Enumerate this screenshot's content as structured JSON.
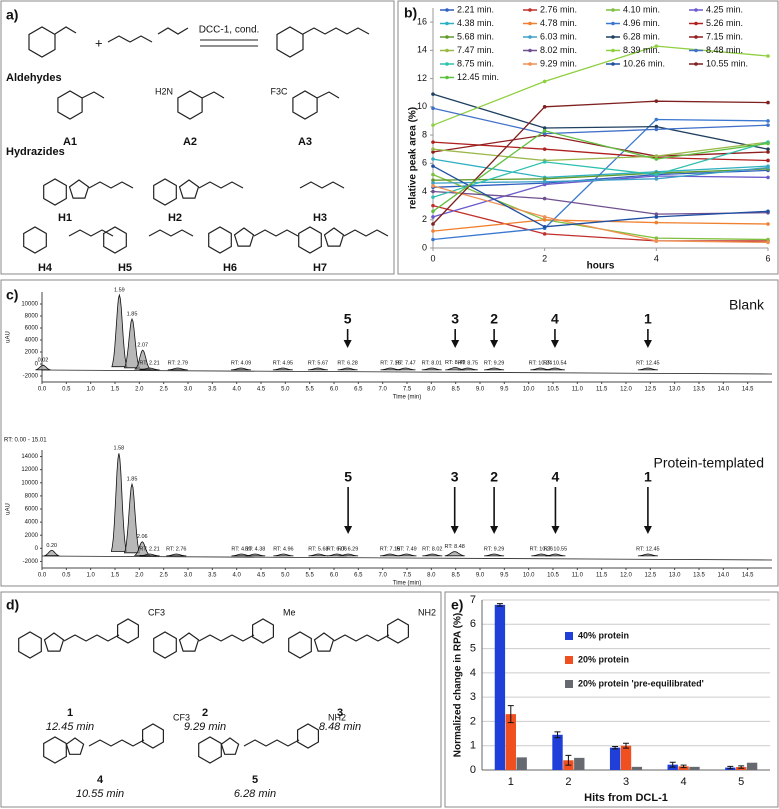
{
  "panel_a": {
    "label": "a)",
    "condition": "DCC-1, cond.",
    "aldehydes_heading": "Aldehydes",
    "aldehydes": [
      {
        "name": "A1"
      },
      {
        "name": "A2",
        "substituent": "H2N"
      },
      {
        "name": "A3",
        "substituent": "F3C"
      }
    ],
    "hydrazides_heading": "Hydrazides",
    "hydrazides": [
      "H1",
      "H2",
      "H3",
      "H4",
      "H5",
      "H6",
      "H7"
    ]
  },
  "panel_d": {
    "label": "d)",
    "compounds": [
      {
        "number": "1",
        "time": "12.45 min",
        "substituent": "CF3"
      },
      {
        "number": "2",
        "time": "9.29 min",
        "substituent": "Me"
      },
      {
        "number": "3",
        "time": "8.48 min",
        "substituent": "NH2"
      },
      {
        "number": "4",
        "time": "10.55 min",
        "substituent": "CF3"
      },
      {
        "number": "5",
        "time": "6.28 min",
        "substituent": "NH2"
      }
    ]
  },
  "chart_data": [
    {
      "type": "line",
      "label": "b)",
      "xlabel": "hours",
      "ylabel": "relative peak area (%)",
      "x": [
        0,
        2,
        4,
        6
      ],
      "xlim": [
        0,
        6
      ],
      "xticks": [
        0,
        2,
        4,
        6
      ],
      "ylim": [
        0,
        17
      ],
      "yticks": [
        0,
        2,
        4,
        6,
        8,
        10,
        12,
        14,
        16
      ],
      "legend": "top",
      "series": [
        {
          "name": "2.21 min.",
          "color": "#2f5fbf",
          "values": [
            4.3,
            4.6,
            5.2,
            5.5
          ]
        },
        {
          "name": "2.76 min.",
          "color": "#c0302c",
          "values": [
            3.0,
            1.0,
            0.5,
            0.5
          ]
        },
        {
          "name": "4.10 min.",
          "color": "#7fbf3f",
          "values": [
            5.2,
            2.0,
            0.7,
            0.6
          ]
        },
        {
          "name": "4.25 min.",
          "color": "#6a5acd",
          "values": [
            2.2,
            4.5,
            5.1,
            5.0
          ]
        },
        {
          "name": "4.38 min.",
          "color": "#2fb0c0",
          "values": [
            6.3,
            5.0,
            5.4,
            5.8
          ]
        },
        {
          "name": "4.78 min.",
          "color": "#f08030",
          "values": [
            1.2,
            2.0,
            1.8,
            1.7
          ]
        },
        {
          "name": "4.96 min.",
          "color": "#3a78d0",
          "values": [
            0.6,
            1.4,
            9.1,
            9.0
          ]
        },
        {
          "name": "5.26 min.",
          "color": "#b02020",
          "values": [
            7.5,
            7.0,
            6.4,
            6.2
          ]
        },
        {
          "name": "5.68 min.",
          "color": "#5f9a2a",
          "values": [
            4.8,
            4.9,
            5.3,
            5.6
          ]
        },
        {
          "name": "6.03 min.",
          "color": "#3fa0c8",
          "values": [
            4.6,
            4.7,
            4.9,
            5.7
          ]
        },
        {
          "name": "6.28 min.",
          "color": "#1f3f5f",
          "values": [
            10.9,
            8.5,
            8.6,
            7.0
          ]
        },
        {
          "name": "7.15 min.",
          "color": "#8f1f1f",
          "values": [
            6.8,
            8.0,
            6.5,
            6.8
          ]
        },
        {
          "name": "7.47 min.",
          "color": "#9ab84a",
          "values": [
            7.0,
            6.2,
            6.5,
            7.5
          ]
        },
        {
          "name": "8.02 min.",
          "color": "#6f4f8f",
          "values": [
            4.0,
            3.5,
            2.4,
            2.5
          ]
        },
        {
          "name": "8.39 min.",
          "color": "#8fd040",
          "values": [
            8.7,
            11.8,
            14.3,
            13.6
          ]
        },
        {
          "name": "8.48 min.",
          "color": "#4070c8",
          "values": [
            9.9,
            8.1,
            8.4,
            8.7
          ]
        },
        {
          "name": "8.75 min.",
          "color": "#2fc0b0",
          "values": [
            3.6,
            6.1,
            5.2,
            7.5
          ]
        },
        {
          "name": "9.29 min.",
          "color": "#f09050",
          "values": [
            4.4,
            2.2,
            0.5,
            0.4
          ]
        },
        {
          "name": "10.26 min.",
          "color": "#1f4fa0",
          "values": [
            5.8,
            1.5,
            2.2,
            2.6
          ]
        },
        {
          "name": "10.55 min.",
          "color": "#7f1f1f",
          "values": [
            1.7,
            10.0,
            10.4,
            10.3
          ]
        },
        {
          "name": "12.45 min.",
          "color": "#5fc040",
          "values": [
            2.6,
            8.3,
            6.3,
            7.4
          ]
        }
      ]
    },
    {
      "type": "chromatogram",
      "label": "c)",
      "xlabel": "Time (min)",
      "ylabel": "uAU",
      "xlim": [
        0,
        15
      ],
      "xticks": [
        {
          "value": 0,
          "label": "0.0"
        },
        0.5,
        {
          "value": 1,
          "label": "1.0"
        },
        1.5,
        {
          "value": 2,
          "label": "2.0"
        },
        2.5,
        {
          "value": 3,
          "label": "3.0"
        },
        3.5,
        {
          "value": 4,
          "label": "4.0"
        },
        4.5,
        {
          "value": 5,
          "label": "5.0"
        },
        5.5,
        {
          "value": 6,
          "label": "6.0"
        },
        6.5,
        {
          "value": 7,
          "label": "7.0"
        },
        7.5,
        {
          "value": 8,
          "label": "8.0"
        },
        8.5,
        {
          "value": 9,
          "label": "9.0"
        },
        9.5,
        {
          "value": 10,
          "label": "10.0"
        },
        10.5,
        {
          "value": 11,
          "label": "11.0"
        },
        11.5,
        {
          "value": 12,
          "label": "12.0"
        },
        12.5,
        {
          "value": 13,
          "label": "13.0"
        },
        13.5,
        {
          "value": 14,
          "label": "14.0"
        },
        14.5
      ],
      "traces": [
        {
          "title": "Blank",
          "ylim": [
            -3000,
            12000
          ],
          "yticks": [
            -2000,
            0,
            2000,
            4000,
            6000,
            8000,
            10000
          ],
          "peaks": {
            "x": [
              0.02,
              1.59,
              1.85,
              2.07,
              2.21,
              2.79,
              4.09,
              4.95,
              5.67,
              6.28,
              7.16,
              7.47,
              8.01,
              8.49,
              8.75,
              9.29,
              10.24,
              10.54,
              12.45
            ],
            "values": [
              -200,
              11500,
              7500,
              2300,
              -1500,
              -2200,
              -1000,
              -1200,
              -2200,
              -1200,
              -1400,
              -2500,
              -1800,
              -600,
              -2000,
              -2500,
              -2700,
              -1900,
              -2900
            ],
            "value_labels": [
              "0.02",
              "1.59",
              "1.85",
              "2.07",
              "RT: 2.21",
              "RT: 2.79",
              "RT: 4.09",
              "RT: 4.95",
              "RT: 5.67",
              "RT: 6.28",
              "RT: 7.16",
              "RT: 7.47",
              "RT: 8.01",
              "RT: 8.49",
              "RT: 8.75",
              "RT: 9.29",
              "RT: 10.24",
              "RT: 10.54",
              "RT: 12.45"
            ]
          },
          "hits": {
            "labels": [
              "5",
              "3",
              "2",
              "4",
              "1"
            ],
            "x": [
              6.28,
              8.49,
              9.29,
              10.54,
              12.45
            ]
          }
        },
        {
          "title": "Protein-templated",
          "range_label": "RT: 0.00 - 15.01",
          "ylim": [
            -3000,
            15000
          ],
          "yticks": [
            -2000,
            0,
            2000,
            4000,
            6000,
            8000,
            10000,
            12000,
            14000
          ],
          "peaks": {
            "x": [
              0.2,
              1.58,
              1.85,
              2.06,
              2.21,
              2.76,
              4.1,
              4.38,
              4.96,
              5.68,
              6.06,
              6.29,
              7.15,
              7.49,
              8.02,
              8.48,
              9.29,
              10.26,
              10.55,
              12.45
            ],
            "values": [
              -300,
              14500,
              9800,
              1000,
              -1500,
              -2000,
              -1000,
              -1000,
              -1500,
              -2000,
              -2600,
              -1200,
              -1300,
              -2400,
              -2200,
              -500,
              -2300,
              -2700,
              -1900,
              -2900
            ],
            "value_labels": [
              "0.20",
              "1.58",
              "1.85",
              "2.06",
              "RT: 2.21",
              "RT: 2.76",
              "RT: 4.10",
              "RT: 4.38",
              "RT: 4.96",
              "RT: 5.68",
              "RT: 6.06",
              "RT: 6.29",
              "RT: 7.15",
              "RT: 7.49",
              "RT: 8.02",
              "RT: 8.48",
              "RT: 9.29",
              "RT: 10.26",
              "RT: 10.55",
              "RT: 12.45"
            ]
          },
          "hits": {
            "labels": [
              "5",
              "3",
              "2",
              "4",
              "1"
            ],
            "x": [
              6.29,
              8.48,
              9.29,
              10.55,
              12.45
            ]
          }
        }
      ]
    },
    {
      "type": "bar",
      "label": "e)",
      "xlabel": "Hits from DCL-1",
      "ylabel": "Normalized change in RPA (%)",
      "categories": [
        "1",
        "2",
        "3",
        "4",
        "5"
      ],
      "ylim": [
        0,
        7
      ],
      "yticks": [
        0,
        1,
        2,
        3,
        4,
        5,
        6,
        7
      ],
      "legend": "inside",
      "series": [
        {
          "name": "40% protein",
          "color": "#1f3fd8",
          "values": [
            6.8,
            1.45,
            0.92,
            0.22,
            0.1
          ],
          "errors": [
            0.05,
            0.12,
            0.05,
            0.1,
            0.05
          ]
        },
        {
          "name": "20% protein",
          "color": "#f0501f",
          "values": [
            2.3,
            0.4,
            1.0,
            0.15,
            0.12
          ],
          "errors": [
            0.35,
            0.2,
            0.1,
            0.05,
            0.05
          ]
        },
        {
          "name": "20% protein 'pre-equilibrated'",
          "color": "#666a70",
          "values": [
            0.52,
            0.5,
            0.13,
            0.13,
            0.3
          ]
        }
      ]
    }
  ]
}
